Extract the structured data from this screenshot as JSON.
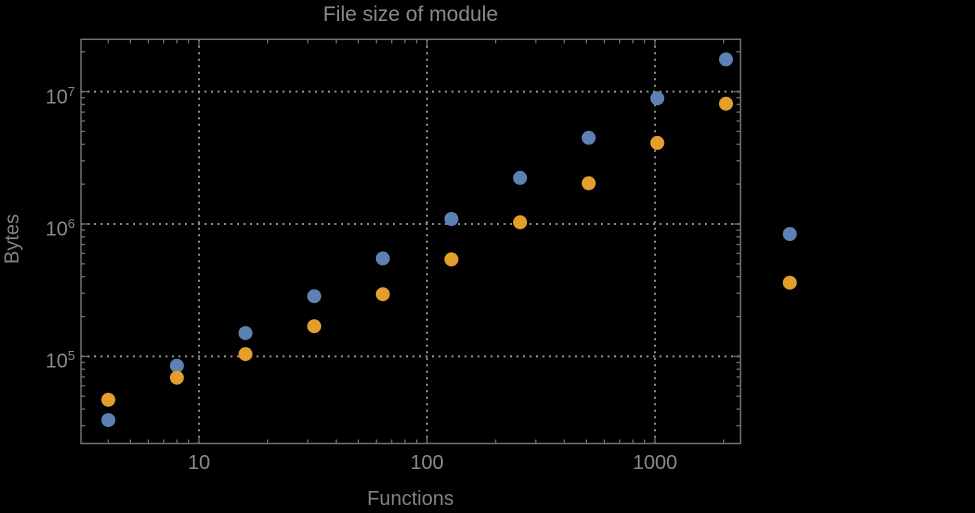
{
  "chart_data": {
    "type": "scatter",
    "title": "File size of module",
    "xlabel": "Functions",
    "ylabel": "Bytes",
    "x_scale": "log",
    "y_scale": "log",
    "xlim": [
      3,
      2370
    ],
    "ylim": [
      22000,
      25000000
    ],
    "grid": "dotted gray lines at decades, frame with inward log ticks on all four sides",
    "legend": "none",
    "x": [
      4,
      8,
      16,
      32,
      64,
      128,
      256,
      512,
      1024,
      2048,
      3900
    ],
    "series": [
      {
        "name": "blue",
        "color": "#5E81B5",
        "values": [
          33000,
          85000,
          150000,
          285000,
          550000,
          1090000,
          2230000,
          4480000,
          8900000,
          17500000,
          840000
        ]
      },
      {
        "name": "orange",
        "color": "#E39E2B",
        "values": [
          47000,
          69000,
          104000,
          169000,
          295000,
          540000,
          1030000,
          2030000,
          4100000,
          8100000,
          360000
        ]
      }
    ],
    "x_ticks": [
      {
        "value": 10,
        "label": "10"
      },
      {
        "value": 100,
        "label": "100"
      },
      {
        "value": 1000,
        "label": "1000"
      }
    ],
    "y_ticks": [
      {
        "value": 100000,
        "base": "10",
        "exponent": "5"
      },
      {
        "value": 1000000,
        "base": "10",
        "exponent": "6"
      },
      {
        "value": 10000000,
        "base": "10",
        "exponent": "7"
      }
    ]
  },
  "colors": {
    "background": "#000000",
    "frame": "#707070",
    "grid": "#8f8f8f",
    "text": "#8a8a8a",
    "series_blue": "#5E81B5",
    "series_orange": "#E39E2B"
  }
}
